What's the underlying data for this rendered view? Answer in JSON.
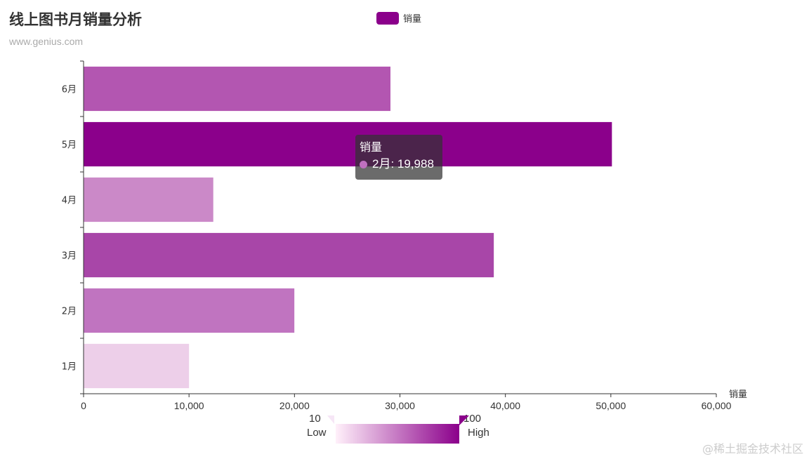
{
  "header": {
    "title": "线上图书月销量分析",
    "subtitle": "www.genius.com"
  },
  "legend": {
    "label": "销量",
    "color": "#8b008b"
  },
  "tooltip": {
    "series": "销量",
    "row": "2月: 19,988",
    "dot_color": "#c070c0"
  },
  "visual_map": {
    "max": "100",
    "min": "10",
    "high_label": "High",
    "low_label": "Low",
    "color_low": "#fff0fa",
    "color_high": "#8b008b"
  },
  "watermark": "@稀土掘金技术社区",
  "chart_data": {
    "type": "bar",
    "orientation": "horizontal",
    "categories": [
      "1月",
      "2月",
      "3月",
      "4月",
      "5月",
      "6月"
    ],
    "series": [
      {
        "name": "销量",
        "values": [
          10000,
          19988,
          38900,
          12300,
          50100,
          29100
        ],
        "colors": [
          "#edcfe9",
          "#c074c0",
          "#a846a8",
          "#cb89c8",
          "#8b008b",
          "#b356b1"
        ]
      }
    ],
    "xlabel": "销量",
    "xlim": [
      0,
      60000
    ],
    "x_ticks": [
      "0",
      "10,000",
      "20,000",
      "30,000",
      "40,000",
      "50,000",
      "60,000"
    ],
    "grid": false
  }
}
